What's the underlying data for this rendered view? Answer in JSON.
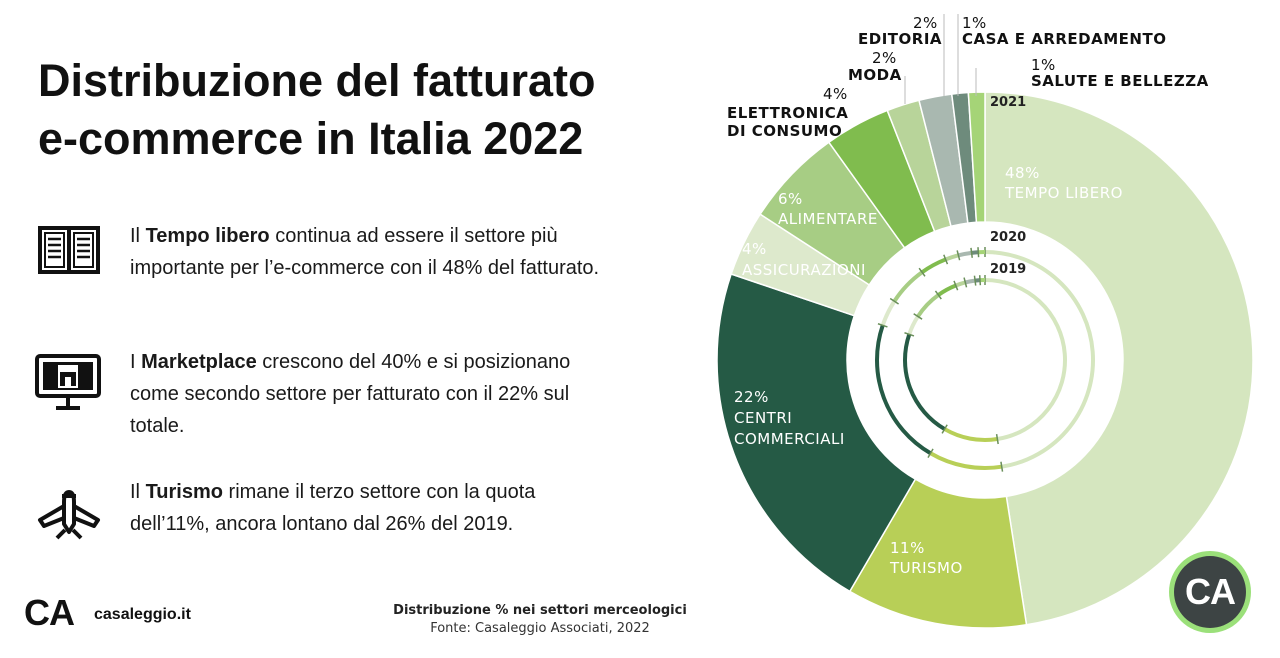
{
  "title": {
    "line1": "Distribuzione del fatturato",
    "line2": "e-commerce in Italia 2022"
  },
  "points": [
    {
      "icon": "open-book-icon",
      "pre": "Il ",
      "bold": "Tempo libero",
      "post": " continua ad essere il settore più importante per l’e-commerce con il 48% del fatturato."
    },
    {
      "icon": "marketplace-monitor-icon",
      "pre": "I ",
      "bold": "Marketplace",
      "post": " crescono del 40% e si posizionano come secondo settore per fatturato con il 22% sul totale."
    },
    {
      "icon": "airplane-icon",
      "pre": "Il ",
      "bold": "Turismo",
      "post": " rimane il terzo settore con la quota dell’11%, ancora lontano dal 26% del 2019."
    }
  ],
  "brand": {
    "logo": "CA",
    "site": "casaleggio.it"
  },
  "caption": {
    "line1": "Distribuzione % nei settori merceologici",
    "line2": "Fonte: Casaleggio Associati, 2022"
  },
  "badge": "CA",
  "chart_data": {
    "type": "pie",
    "variant": "donut",
    "rings": [
      {
        "name": "2021"
      },
      {
        "name": "2020"
      },
      {
        "name": "2019"
      }
    ],
    "slices": [
      {
        "label": "TEMPO LIBERO",
        "value": 48,
        "value_label": "48%",
        "color": "#d5e6bf"
      },
      {
        "label": "TURISMO",
        "value": 11,
        "value_label": "11%",
        "color": "#b8cf57"
      },
      {
        "label": "CENTRI COMMERCIALI",
        "value": 22,
        "value_label": "22%",
        "color": "#255a45"
      },
      {
        "label": "ASSICURAZIONI",
        "value": 4,
        "value_label": "4%",
        "color": "#dde9cc"
      },
      {
        "label": "ALIMENTARE",
        "value": 6,
        "value_label": "6%",
        "color": "#a7cd84"
      },
      {
        "label": "ELETTRONICA DI CONSUMO",
        "value": 4,
        "value_label": "4%",
        "color": "#80bc4e"
      },
      {
        "label": "MODA",
        "value": 2,
        "value_label": "2%",
        "color": "#b8d49a"
      },
      {
        "label": "EDITORIA",
        "value": 2,
        "value_label": "2%",
        "color": "#a9b8b0"
      },
      {
        "label": "CASA E ARREDAMENTO",
        "value": 1,
        "value_label": "1%",
        "color": "#6e8b7c"
      },
      {
        "label": "SALUTE E BELLEZZA",
        "value": 1,
        "value_label": "1%",
        "color": "#a5d477"
      }
    ]
  }
}
